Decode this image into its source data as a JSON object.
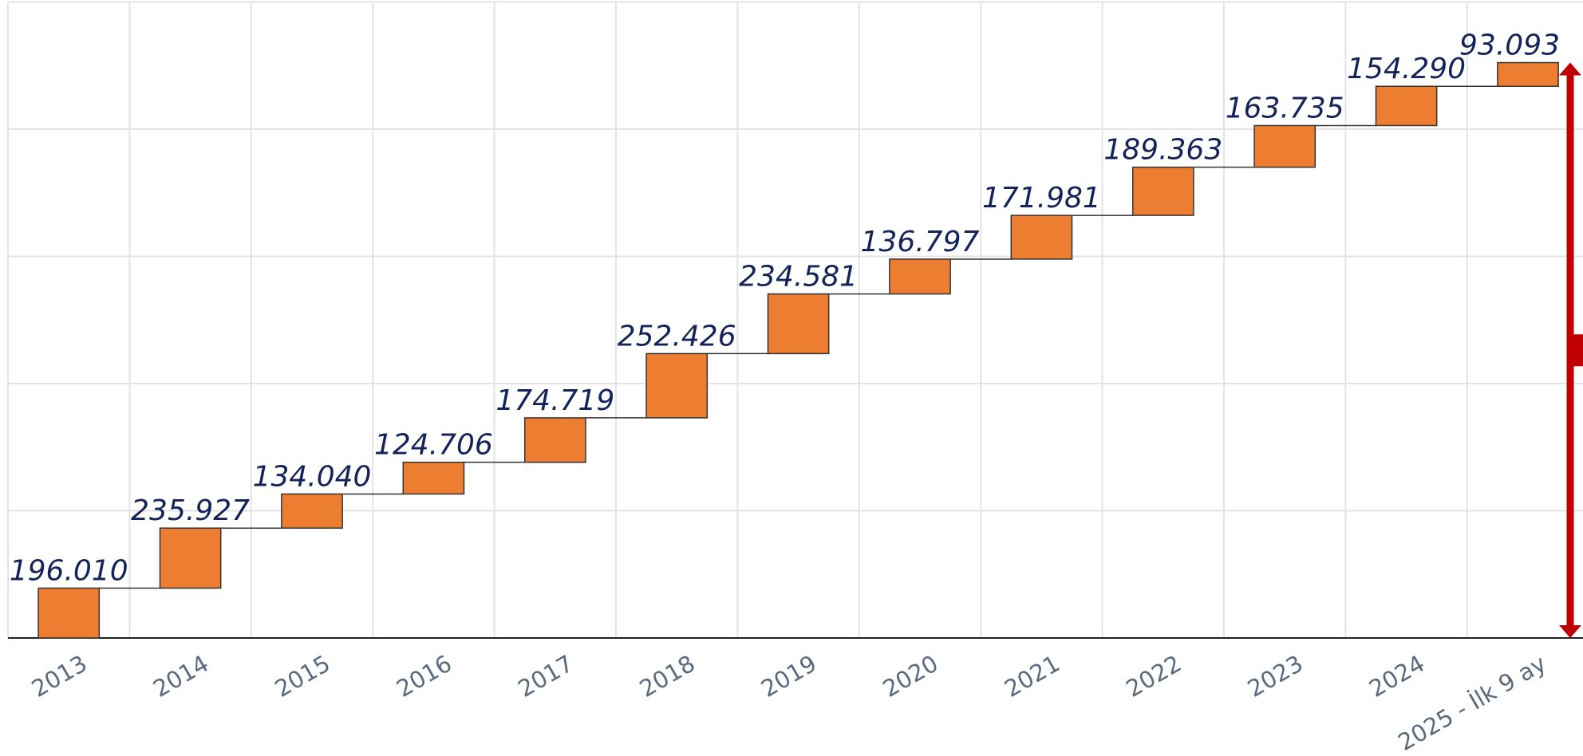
{
  "chart_data": {
    "type": "waterfall",
    "categories": [
      "2013",
      "2014",
      "2015",
      "2016",
      "2017",
      "2018",
      "2019",
      "2020",
      "2021",
      "2022",
      "2023",
      "2024",
      "2025 - İlk 9 ay"
    ],
    "values": [
      196010,
      235927,
      134040,
      124706,
      174719,
      252426,
      234581,
      136797,
      171981,
      189363,
      163735,
      154290,
      93093
    ],
    "value_labels": [
      "196.010",
      "235.927",
      "134.040",
      "124.706",
      "174.719",
      "252.426",
      "234.581",
      "136.797",
      "171.981",
      "189.363",
      "163.735",
      "154.290",
      "93.093"
    ],
    "color": "#ed7d31",
    "ylim": [
      0,
      2500000
    ],
    "yticks": [
      0,
      500000,
      1000000,
      1500000,
      2000000,
      2500000
    ],
    "grid": true
  }
}
